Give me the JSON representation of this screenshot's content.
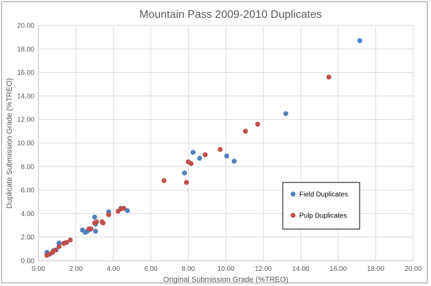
{
  "chart_data": {
    "type": "scatter",
    "title": "Mountain Pass 2009-2010 Duplicates",
    "xlabel": "Original Submission Grade (%TREO)",
    "ylabel": "Duplicate Submission Grade (%TREO)",
    "xlim": [
      0,
      20
    ],
    "ylim": [
      0,
      20
    ],
    "x_ticks": [
      "0.00",
      "2.00",
      "4.00",
      "6.00",
      "8.00",
      "10.00",
      "12.00",
      "14.00",
      "16.00",
      "18.00",
      "20.00"
    ],
    "y_ticks": [
      "0.00",
      "2.00",
      "4.00",
      "6.00",
      "8.00",
      "10.00",
      "12.00",
      "14.00",
      "16.00",
      "18.00",
      "20.00"
    ],
    "grid": true,
    "legend_position": "lower-right",
    "series": [
      {
        "name": "Field Duplicates",
        "color": "#4f81bd",
        "points": [
          [
            0.45,
            0.7
          ],
          [
            0.6,
            0.55
          ],
          [
            0.8,
            0.85
          ],
          [
            0.95,
            0.9
          ],
          [
            1.1,
            1.5
          ],
          [
            1.4,
            1.5
          ],
          [
            2.35,
            2.6
          ],
          [
            2.5,
            2.4
          ],
          [
            2.6,
            2.5
          ],
          [
            2.75,
            2.65
          ],
          [
            3.0,
            3.7
          ],
          [
            3.05,
            2.5
          ],
          [
            3.05,
            3.1
          ],
          [
            3.75,
            4.15
          ],
          [
            4.4,
            4.45
          ],
          [
            4.75,
            4.25
          ],
          [
            7.8,
            7.45
          ],
          [
            8.25,
            9.2
          ],
          [
            8.6,
            8.7
          ],
          [
            10.05,
            8.9
          ],
          [
            10.45,
            8.45
          ],
          [
            13.2,
            12.5
          ],
          [
            17.15,
            18.7
          ]
        ]
      },
      {
        "name": "Pulp Duplicates",
        "color": "#c0504d",
        "points": [
          [
            0.45,
            0.45
          ],
          [
            0.55,
            0.55
          ],
          [
            0.75,
            0.7
          ],
          [
            0.9,
            0.9
          ],
          [
            1.1,
            1.2
          ],
          [
            1.35,
            1.45
          ],
          [
            1.5,
            1.55
          ],
          [
            1.7,
            1.75
          ],
          [
            2.7,
            2.7
          ],
          [
            2.8,
            2.7
          ],
          [
            3.0,
            3.2
          ],
          [
            3.1,
            3.3
          ],
          [
            3.4,
            3.3
          ],
          [
            3.45,
            3.2
          ],
          [
            3.75,
            3.9
          ],
          [
            4.25,
            4.2
          ],
          [
            4.4,
            4.4
          ],
          [
            4.55,
            4.45
          ],
          [
            6.7,
            6.8
          ],
          [
            7.9,
            6.65
          ],
          [
            8.0,
            8.4
          ],
          [
            8.15,
            8.25
          ],
          [
            8.9,
            9.0
          ],
          [
            9.7,
            9.45
          ],
          [
            11.05,
            11.0
          ],
          [
            11.7,
            11.6
          ],
          [
            15.5,
            15.6
          ]
        ]
      }
    ]
  }
}
